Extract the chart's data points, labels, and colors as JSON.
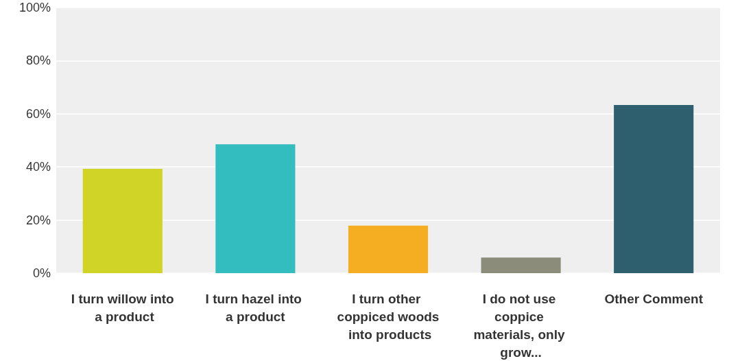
{
  "chart_data": {
    "type": "bar",
    "categories": [
      "I turn willow into a product",
      "I turn hazel into a product",
      "I turn other coppiced woods into products",
      "I do not use coppice materials, only grow...",
      "Other Comment"
    ],
    "values": [
      39.3,
      48.5,
      17.9,
      5.9,
      63.3
    ],
    "colors": [
      "#d0d426",
      "#33bdbf",
      "#f5ae22",
      "#8c8c7a",
      "#2e5f6e"
    ],
    "ylim": [
      0,
      100
    ],
    "yticks": [
      {
        "value": 0,
        "label": "0%"
      },
      {
        "value": 20,
        "label": "20%"
      },
      {
        "value": 40,
        "label": "40%"
      },
      {
        "value": 60,
        "label": "60%"
      },
      {
        "value": 80,
        "label": "80%"
      },
      {
        "value": 100,
        "label": "100%"
      }
    ],
    "grid": "y"
  }
}
